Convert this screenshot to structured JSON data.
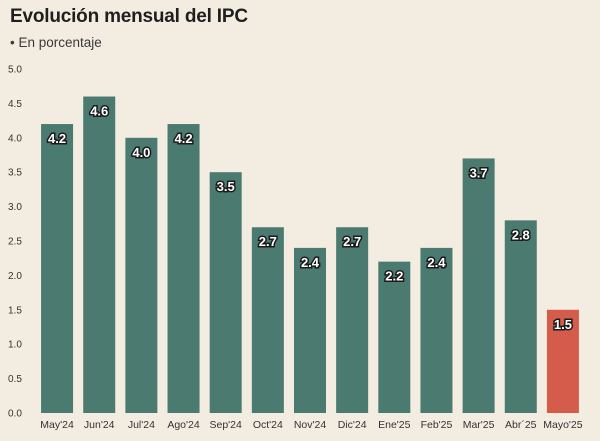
{
  "title": "Evolución mensual del IPC",
  "subtitle": "• En porcentaje",
  "chart_data": {
    "type": "bar",
    "title": "Evolución mensual del IPC",
    "subtitle": "• En porcentaje",
    "categories": [
      "May'24",
      "Jun'24",
      "Jul'24",
      "Ago'24",
      "Sep'24",
      "Oct'24",
      "Nov'24",
      "Dic'24",
      "Ene'25",
      "Feb'25",
      "Mar'25",
      "Abr´25",
      "Mayo'25"
    ],
    "values": [
      4.2,
      4.6,
      4.0,
      4.2,
      3.5,
      2.7,
      2.4,
      2.7,
      2.2,
      2.4,
      3.7,
      2.8,
      1.5
    ],
    "value_labels": [
      "4.2",
      "4.6",
      "4.0",
      "4.2",
      "3.5",
      "2.7",
      "2.4",
      "2.7",
      "2.2",
      "2.4",
      "3.7",
      "2.8",
      "1.5"
    ],
    "yticks": [
      "0.0",
      "0.5",
      "1.0",
      "1.5",
      "2.0",
      "2.5",
      "3.0",
      "3.5",
      "4.0",
      "4.5",
      "5.0"
    ],
    "ylim": [
      0,
      5
    ],
    "grid": false,
    "colors": {
      "bar": "#4b7a70",
      "highlight": "#d45c4a",
      "background": "#f3ece1"
    },
    "highlight_index": 12
  }
}
